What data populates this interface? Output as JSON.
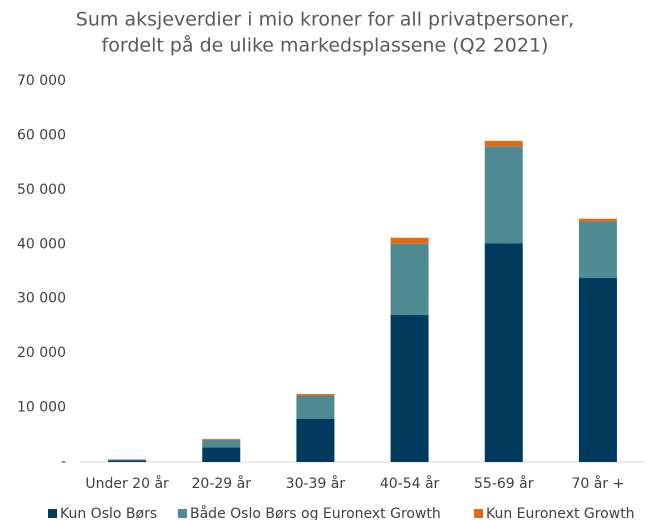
{
  "chart_data": {
    "type": "stacked_bar",
    "title": [
      "Sum aksjeverdier i mio kroner for all privatpersoner,",
      "fordelt på de ulike markedsplassene (Q2 2021)"
    ],
    "categories": [
      "Under 20 år",
      "20-29 år",
      "30-39 år",
      "40-54 år",
      "55-69 år",
      "70 år +"
    ],
    "series": [
      {
        "name": "Kun Oslo Børs",
        "color": "#003a5c",
        "values": [
          300,
          2700,
          7900,
          27000,
          40200,
          33800
        ]
      },
      {
        "name": "Både Oslo Børs og Euronext Growth",
        "color": "#4f8a92",
        "values": [
          150,
          1400,
          4300,
          13100,
          17800,
          10400
        ]
      },
      {
        "name": "Kun Euronext Growth",
        "color": "#e06c1a",
        "values": [
          30,
          150,
          300,
          1100,
          1000,
          500
        ]
      }
    ],
    "ylim": [
      0,
      70000
    ],
    "yticks": [
      {
        "value": 0,
        "label": "-"
      },
      {
        "value": 10000,
        "label": "10 000"
      },
      {
        "value": 20000,
        "label": "20 000"
      },
      {
        "value": 30000,
        "label": "30 000"
      },
      {
        "value": 40000,
        "label": "40 000"
      },
      {
        "value": 50000,
        "label": "50 000"
      },
      {
        "value": 60000,
        "label": "60 000"
      },
      {
        "value": 70000,
        "label": "70 000"
      }
    ],
    "legend": "bottom"
  }
}
